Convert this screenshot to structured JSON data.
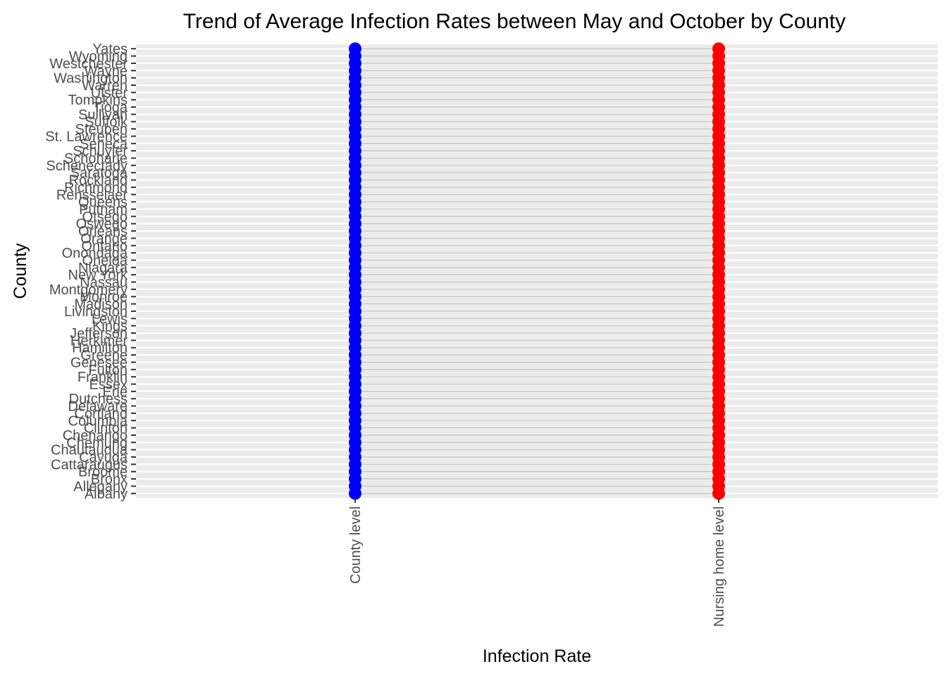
{
  "chart_data": {
    "type": "scatter",
    "title": "Trend of Average Infection Rates between May and October by County",
    "xlabel": "Infection Rate",
    "ylabel": "County",
    "x_categories": [
      "County level",
      "Nursing home level"
    ],
    "y_categories": [
      "Albany",
      "Allegany",
      "Bronx",
      "Broome",
      "Cattaraugus",
      "Cayuga",
      "Chautauqua",
      "Chemung",
      "Chenango",
      "Clinton",
      "Columbia",
      "Cortland",
      "Delaware",
      "Dutchess",
      "Erie",
      "Essex",
      "Franklin",
      "Fulton",
      "Genesee",
      "Greene",
      "Hamilton",
      "Herkimer",
      "Jefferson",
      "Kings",
      "Lewis",
      "Livingston",
      "Madison",
      "Monroe",
      "Montgomery",
      "Nassau",
      "New York",
      "Niagara",
      "Oneida",
      "Onondaga",
      "Ontario",
      "Orange",
      "Orleans",
      "Oswego",
      "Otsego",
      "Putnam",
      "Queens",
      "Rensselaer",
      "Richmond",
      "Rockland",
      "Saratoga",
      "Schenectady",
      "Schoharie",
      "Schuyler",
      "Seneca",
      "St. Lawrence",
      "Steuben",
      "Suffolk",
      "Sullivan",
      "Tioga",
      "Tompkins",
      "Ulster",
      "Warren",
      "Washington",
      "Wayne",
      "Westchester",
      "Wyoming",
      "Yates"
    ],
    "series": [
      {
        "x": "County level",
        "color": "#0000ff"
      },
      {
        "x": "Nursing home level",
        "color": "#ff0000"
      }
    ],
    "segment_color": "#c8c8c8",
    "panel_background": "#ebebeb",
    "grid": true,
    "legend": "none"
  }
}
